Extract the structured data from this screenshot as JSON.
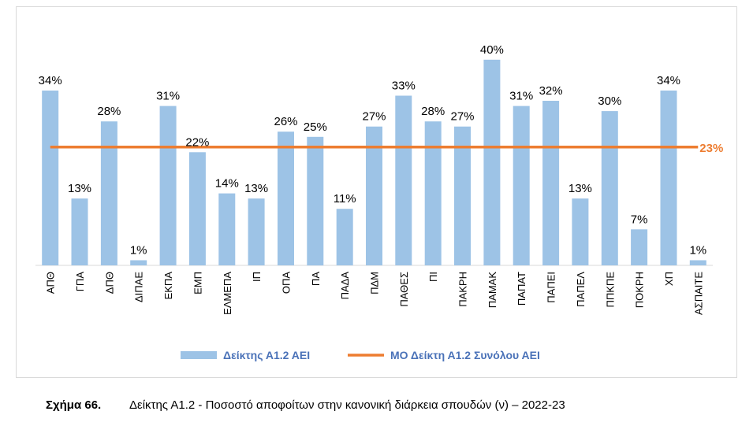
{
  "chart_data": {
    "type": "bar",
    "title": "",
    "xlabel": "",
    "ylabel": "",
    "ylim": [
      0,
      40
    ],
    "grid": false,
    "legend": "bottom",
    "categories": [
      "ΑΠΘ",
      "ΓΠΑ",
      "ΔΠΘ",
      "ΔΙΠΑΕ",
      "ΕΚΠΑ",
      "ΕΜΠ",
      "ΕΛΜΕΠΑ",
      "ΙΠ",
      "ΟΠΑ",
      "ΠΑ",
      "ΠΑΔΑ",
      "ΠΔΜ",
      "ΠΑΘΕΣ",
      "ΠΙ",
      "ΠΑΚΡΗ",
      "ΠΑΜΑΚ",
      "ΠΑΠΑΤ",
      "ΠΑΠΕΙ",
      "ΠΑΠΕΛ",
      "ΠΠΚΠΕ",
      "ΠΟΚΡΗ",
      "ΧΠ",
      "ΑΣΠΑΙΤΕ"
    ],
    "series": [
      {
        "name": "Δείκτης Α1.2 ΑΕΙ",
        "type": "bar",
        "color": "#9dc3e6",
        "values": [
          34,
          13,
          28,
          1,
          31,
          22,
          14,
          13,
          26,
          25,
          11,
          27,
          33,
          28,
          27,
          40,
          31,
          32,
          13,
          30,
          7,
          34,
          1
        ],
        "labels": [
          "34%",
          "13%",
          "28%",
          "1%",
          "31%",
          "22%",
          "14%",
          "13%",
          "26%",
          "25%",
          "11%",
          "27%",
          "33%",
          "28%",
          "27%",
          "40%",
          "31%",
          "32%",
          "13%",
          "30%",
          "7%",
          "34%",
          "1%"
        ]
      },
      {
        "name": "ΜΟ Δείκτη Α1.2 Συνόλου ΑΕΙ",
        "type": "line",
        "color": "#ed7d31",
        "value": 23,
        "label": "23%"
      }
    ]
  },
  "caption": {
    "figure_number": "Σχήμα 66.",
    "text": "Δείκτης Α1.2 - Ποσοστό αποφοίτων στην κανονική διάρκεια σπουδών (ν) – 2022-23"
  }
}
